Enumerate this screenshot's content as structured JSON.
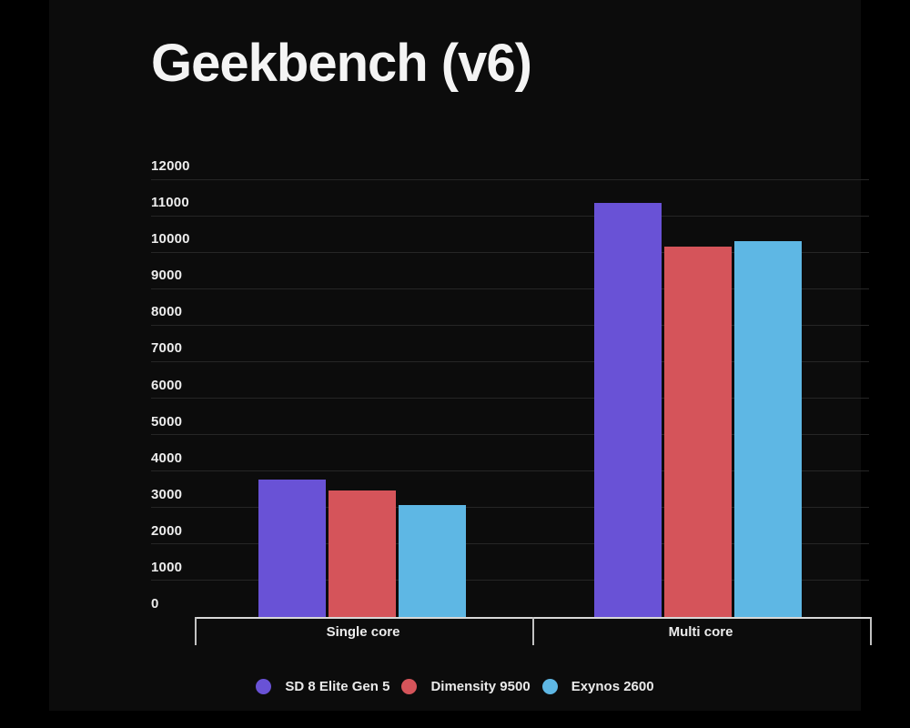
{
  "title": "Geekbench (v6)",
  "chart_data": {
    "type": "bar",
    "title": "Geekbench (v6)",
    "categories": [
      "Single core",
      "Multi core"
    ],
    "series": [
      {
        "name": "SD 8 Elite Gen 5",
        "color": "#6952d6",
        "values": [
          3770,
          11350
        ]
      },
      {
        "name": "Dimensity 9500",
        "color": "#d5545a",
        "values": [
          3470,
          10150
        ]
      },
      {
        "name": "Exynos 2600",
        "color": "#5eb7e4",
        "values": [
          3070,
          10300
        ]
      }
    ],
    "ylabel": "",
    "xlabel": "",
    "ylim": [
      0,
      12000
    ],
    "ytick_step": 1000,
    "yticks": [
      0,
      1000,
      2000,
      3000,
      4000,
      5000,
      6000,
      7000,
      8000,
      9000,
      10000,
      11000,
      12000
    ],
    "grid": true,
    "legend_position": "bottom",
    "colors": {
      "background_outer": "#000000",
      "background_panel": "#0c0c0c",
      "text": "#f4f4f4",
      "gridline": "#262626",
      "axis_line": "#d8d8d8"
    }
  }
}
